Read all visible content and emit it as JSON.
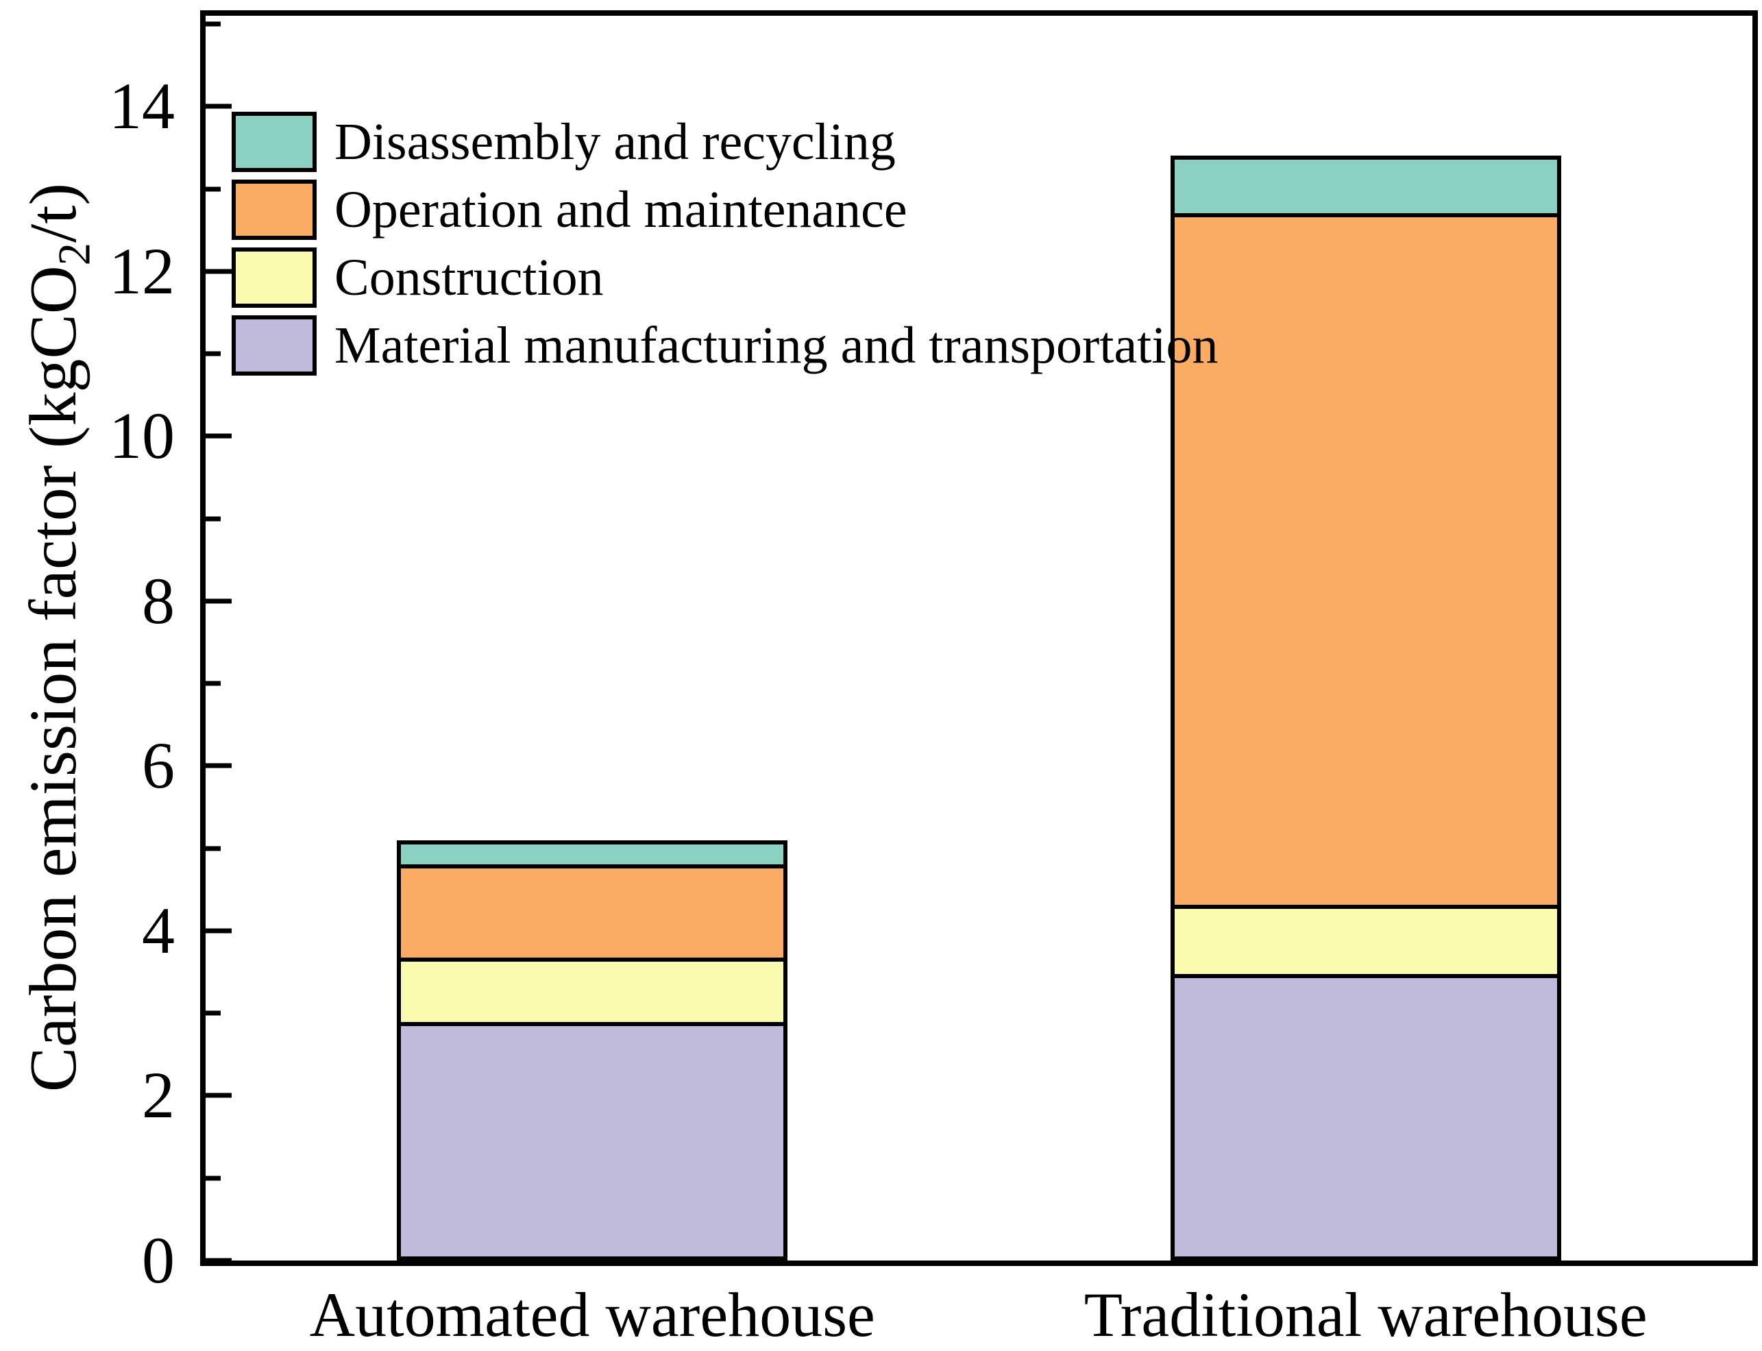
{
  "figure": {
    "background": "#ffffff",
    "axis_color": "#000000",
    "y_axis": {
      "title_pre": "Carbon emission factor (kgCO",
      "title_sub": "2",
      "title_post": "/t)",
      "major_ticks": [
        0,
        2,
        4,
        6,
        8,
        10,
        12,
        14
      ],
      "minor_ticks": [
        1,
        3,
        5,
        7,
        9,
        11,
        13,
        15
      ]
    },
    "legend": {
      "items": [
        {
          "label": "Disassembly and recycling",
          "color": "#8BD1C2"
        },
        {
          "label": "Operation and maintenance",
          "color": "#FAAD62"
        },
        {
          "label": "Construction",
          "color": "#FBFBB0"
        },
        {
          "label": "Material manufacturing and transportation",
          "color": "#C0BBDB"
        }
      ]
    }
  },
  "chart_data": {
    "type": "bar",
    "stacked": true,
    "title": "",
    "xlabel": "",
    "ylabel": "Carbon emission factor (kgCO2/t)",
    "ylim": [
      0,
      15.1
    ],
    "grid": false,
    "legend_position": "top-left",
    "categories": [
      "Automated warehouse",
      "Traditional warehouse"
    ],
    "series": [
      {
        "name": "Material manufacturing and transportation",
        "color": "#C0BBDB",
        "values": [
          2.85,
          3.4
        ]
      },
      {
        "name": "Construction",
        "color": "#FBFBB0",
        "values": [
          0.8,
          0.85
        ]
      },
      {
        "name": "Operation and maintenance",
        "color": "#FAAD62",
        "values": [
          1.15,
          8.45
        ]
      },
      {
        "name": "Disassembly and recycling",
        "color": "#8BD1C2",
        "values": [
          0.3,
          0.7
        ]
      }
    ],
    "totals": [
      5.1,
      13.4
    ]
  }
}
